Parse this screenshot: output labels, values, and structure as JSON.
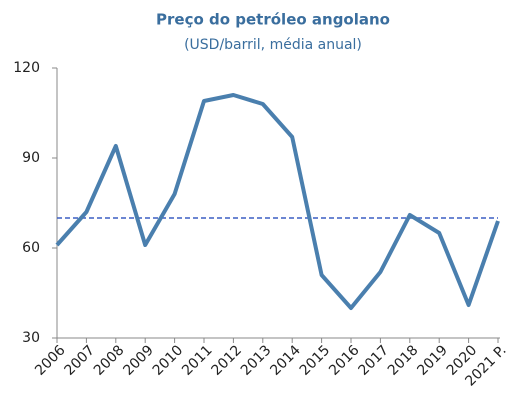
{
  "chart_data": {
    "type": "line",
    "title": "Preço do petróleo angolano",
    "subtitle": "(USD/barril, média anual)",
    "categories": [
      "2006",
      "2007",
      "2008",
      "2009",
      "2010",
      "2011",
      "2012",
      "2013",
      "2014",
      "2015",
      "2016",
      "2017",
      "2018",
      "2019",
      "2020",
      "2021 P."
    ],
    "series": [
      {
        "name": "Preço do petróleo angolano",
        "color": "#4a7fae",
        "values": [
          61,
          72,
          94,
          61,
          78,
          109,
          111,
          108,
          97,
          51,
          40,
          52,
          71,
          65,
          41,
          69
        ]
      }
    ],
    "reference_line": {
      "value": 70,
      "color": "#3b5fc4",
      "dashed": true
    },
    "ylim": [
      30,
      120
    ],
    "yticks": [
      30,
      60,
      90,
      120
    ],
    "grid": false
  }
}
